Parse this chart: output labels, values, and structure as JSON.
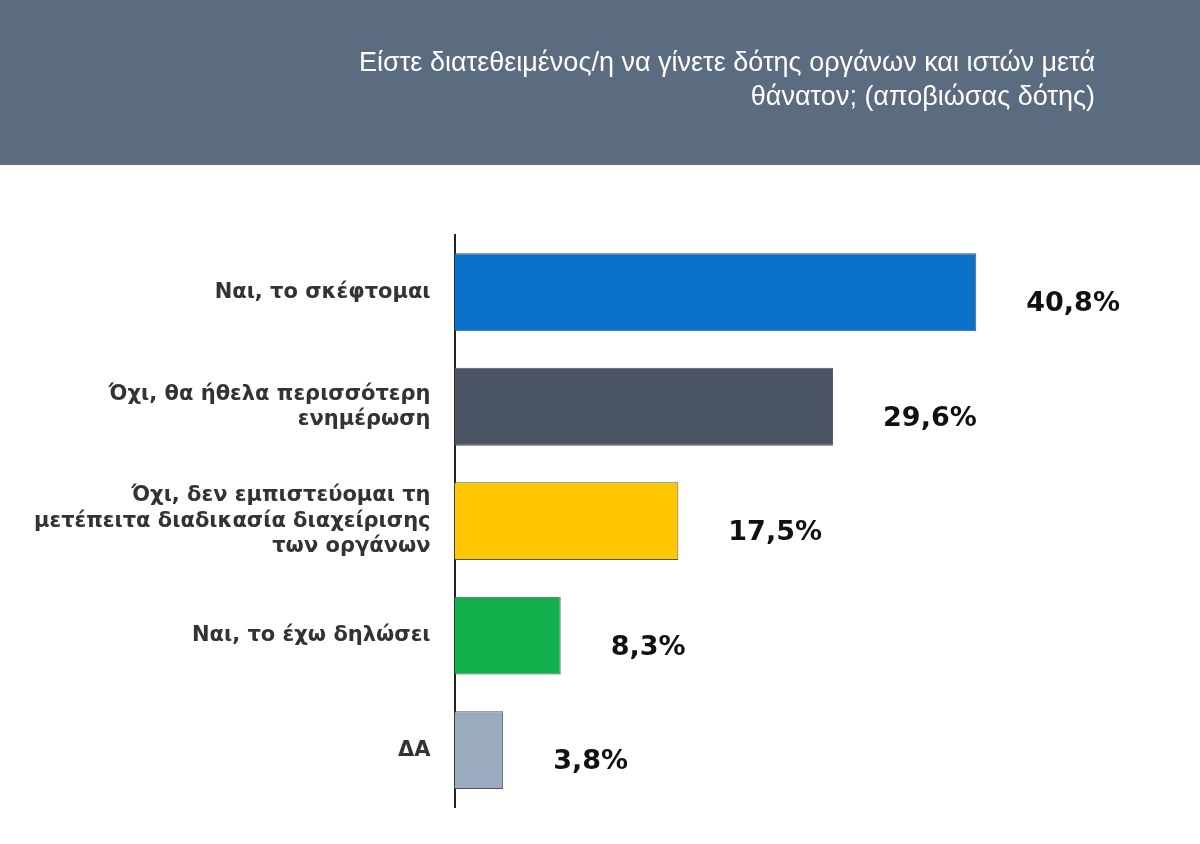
{
  "chart_data": {
    "type": "bar",
    "orientation": "horizontal",
    "title": "Είστε διατεθειμένος/η να γίνετε δότης οργάνων και ιστών μετά θάνατον; (αποβιώσας δότης)",
    "categories": [
      "Ναι, το σκέφτομαι",
      "Όχι, θα ήθελα περισσότερη ενημέρωση",
      "Όχι, δεν εμπιστεύομαι τη μετέπειτα διαδικασία διαχείρισης των οργάνων",
      "Ναι, το έχω δηλώσει",
      "ΔΑ"
    ],
    "values": [
      40.8,
      29.6,
      17.5,
      8.3,
      3.8
    ],
    "colors": [
      "#0a72c9",
      "#4b5565",
      "#ffc800",
      "#12b04c",
      "#9aabbf"
    ],
    "value_labels": [
      "40,8%",
      "29,6%",
      "17,5%",
      "8,3%",
      "3,8%"
    ],
    "grid": false,
    "legend": false
  }
}
